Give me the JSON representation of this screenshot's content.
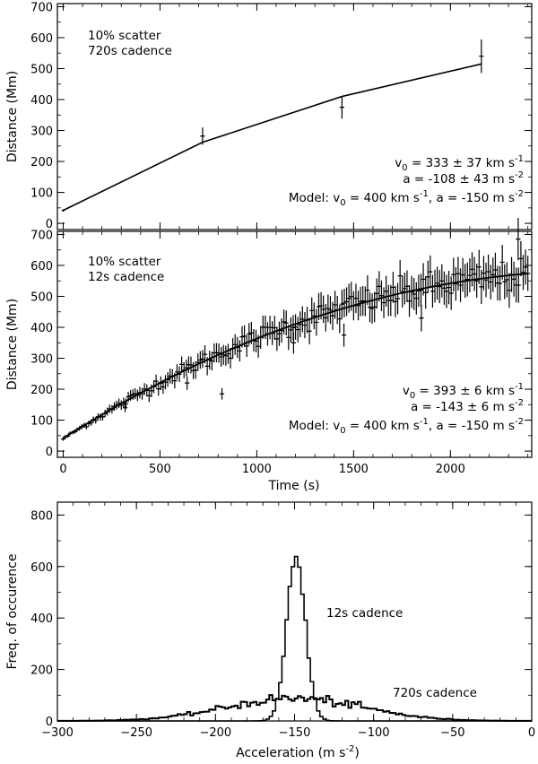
{
  "chart_data": [
    {
      "type": "scatter",
      "id": "top",
      "ylabel": "Distance (Mm)",
      "xlabel": "",
      "xlim": [
        -30,
        2420
      ],
      "ylim": [
        -20,
        710
      ],
      "xticks": [
        0,
        500,
        1000,
        1500,
        2000
      ],
      "yticks": [
        0,
        100,
        200,
        300,
        400,
        500,
        600,
        700
      ],
      "show_x_tick_labels": false,
      "annotation_top": [
        "10% scatter",
        "720s cadence"
      ],
      "fit_text": {
        "v0_value": "333 ± 37 km s",
        "v0_exp": "-1",
        "a_value": "-108 ± 43 m s",
        "a_exp": "-2"
      },
      "model_text": {
        "prefix": "Model: v",
        "sub": "0",
        "mid": " = 400 km s",
        "exp1": "-1",
        "mid2": ", a = -150 m s",
        "exp2": "-2"
      },
      "points": [
        {
          "x": 0,
          "y": 42,
          "xerr": 8,
          "yerr": 4
        },
        {
          "x": 720,
          "y": 282,
          "xerr": 12,
          "yerr": 28
        },
        {
          "x": 1440,
          "y": 375,
          "xerr": 12,
          "yerr": 37
        },
        {
          "x": 2160,
          "y": 540,
          "xerr": 12,
          "yerr": 54
        }
      ],
      "fit_line": {
        "x": [
          0,
          720,
          1440,
          2160
        ],
        "y": [
          42,
          262,
          410,
          515
        ]
      }
    },
    {
      "type": "scatter",
      "id": "middle",
      "ylabel": "Distance (Mm)",
      "xlabel": "Time (s)",
      "xlim": [
        -30,
        2420
      ],
      "ylim": [
        -20,
        710
      ],
      "xticks": [
        0,
        500,
        1000,
        1500,
        2000
      ],
      "yticks": [
        0,
        100,
        200,
        300,
        400,
        500,
        600,
        700
      ],
      "show_x_tick_labels": true,
      "annotation_top": [
        "10% scatter",
        "12s cadence"
      ],
      "fit_text": {
        "v0_value": "393 ± 6 km s",
        "v0_exp": "-1",
        "a_value": "-143 ± 6 m s",
        "a_exp": "-2"
      },
      "model_text": {
        "prefix": "Model: v",
        "sub": "0",
        "mid": " = 400 km s",
        "exp1": "-1",
        "mid2": ", a = -150 m s",
        "exp2": "-2"
      },
      "series_model": {
        "d0": 40,
        "v0": 400,
        "a": -150,
        "t_start": 0,
        "t_end": 2400,
        "dt": 12,
        "scatter": 0.1
      },
      "outliers": [
        {
          "x": 320,
          "y": 140
        },
        {
          "x": 640,
          "y": 220
        },
        {
          "x": 820,
          "y": 185
        },
        {
          "x": 1190,
          "y": 350
        },
        {
          "x": 1450,
          "y": 375
        },
        {
          "x": 1850,
          "y": 430
        },
        {
          "x": 2350,
          "y": 685
        }
      ],
      "fit_line": {
        "d0": 42,
        "v0": 393,
        "a": -143
      }
    },
    {
      "type": "histogram",
      "id": "bottom",
      "ylabel": "Freq. of occurence",
      "xlabel": "Acceleration (m s",
      "xlabel_exp": "-2",
      "xlabel_end": ")",
      "xlim": [
        -300,
        0
      ],
      "ylim": [
        0,
        850
      ],
      "xticks": [
        -300,
        -250,
        -200,
        -150,
        -100,
        -50,
        0
      ],
      "yticks": [
        0,
        200,
        400,
        600,
        800
      ],
      "bin_width": 2,
      "series": [
        {
          "name": "12s cadence",
          "center": -149,
          "sigma": 6,
          "peak": 620
        },
        {
          "name": "720s cadence",
          "center": -150,
          "sigma": 43,
          "peak": 88
        }
      ]
    }
  ]
}
